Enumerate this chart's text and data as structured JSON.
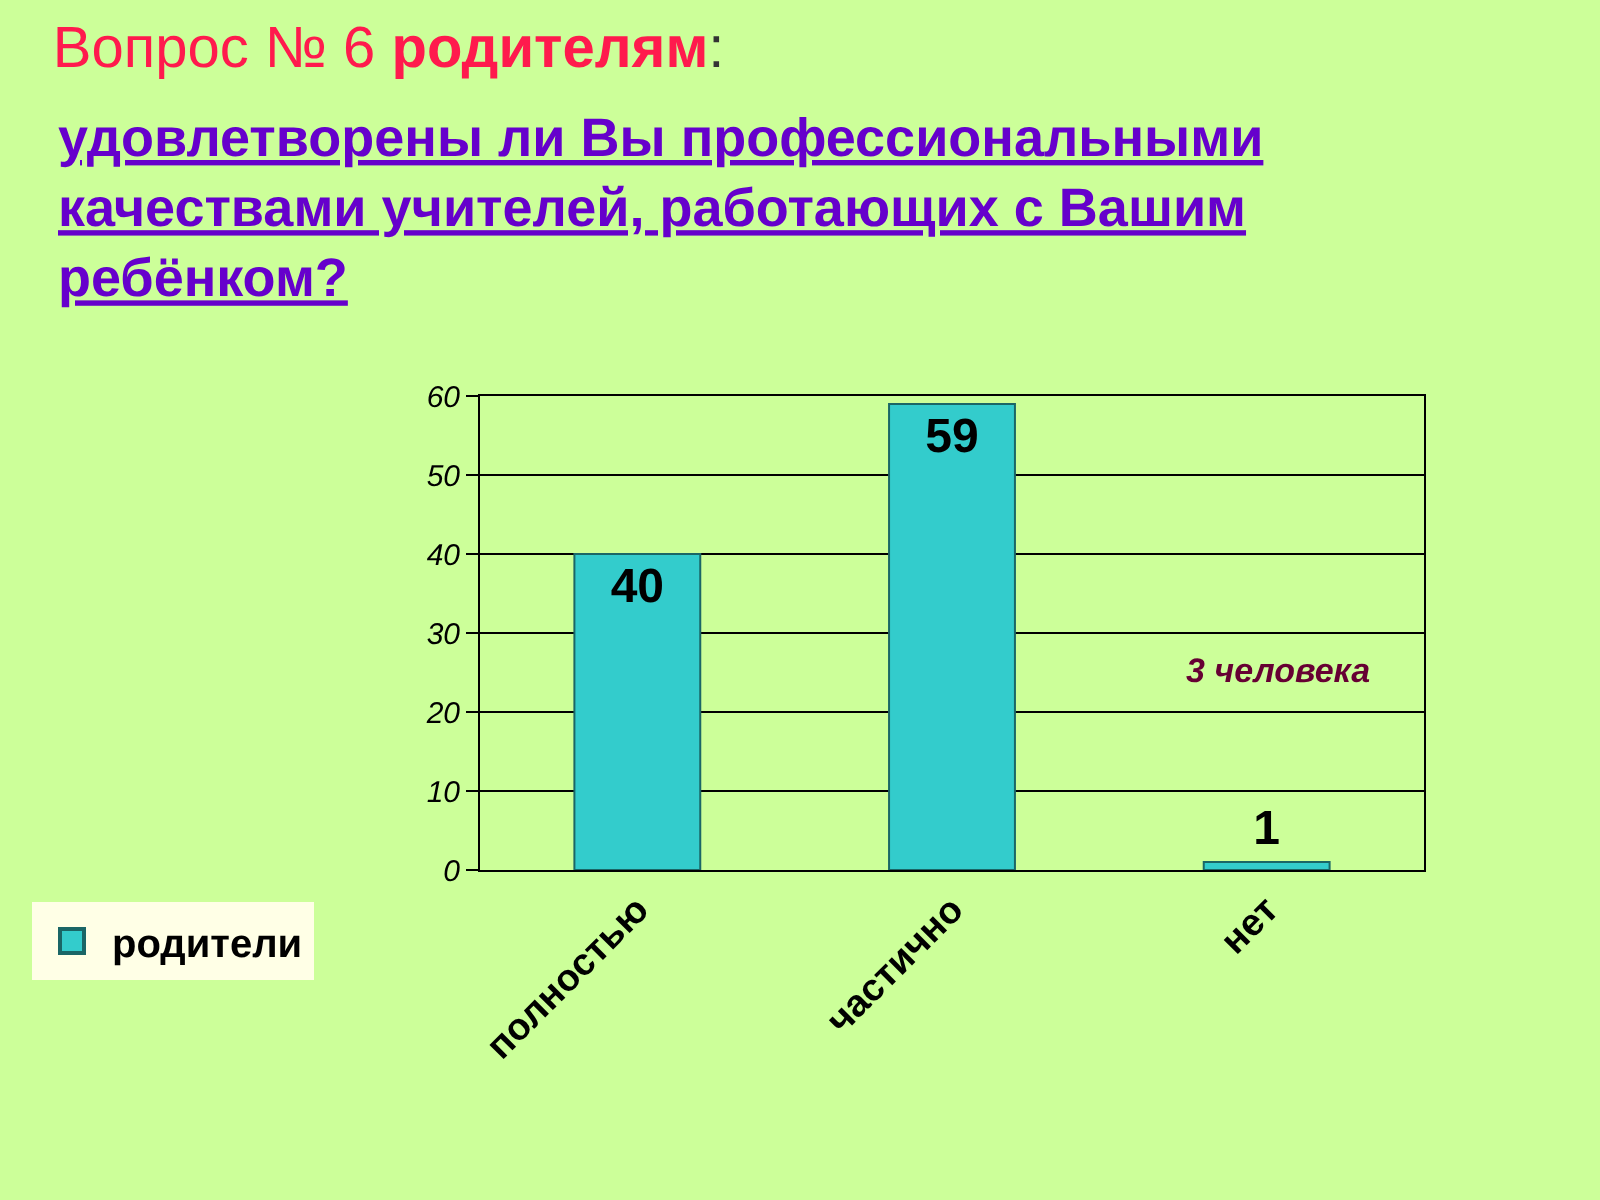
{
  "chart_data": {
    "type": "bar",
    "title": "Вопрос № 6 родителям:",
    "subtitle": "удовлетворены ли Вы профессиональными качествами учителей, работающих с Вашим ребёнком?",
    "categories": [
      "полностью",
      "частично",
      "нет"
    ],
    "series": [
      {
        "name": "родители",
        "color": "#33cccc",
        "values": [
          40,
          59,
          1
        ]
      }
    ],
    "ylim": [
      0,
      60
    ],
    "yticks": [
      0,
      10,
      20,
      30,
      40,
      50,
      60
    ],
    "grid": "y",
    "legend": "bottom left",
    "data_labels": true,
    "annotations": [
      "3 человека"
    ]
  }
}
